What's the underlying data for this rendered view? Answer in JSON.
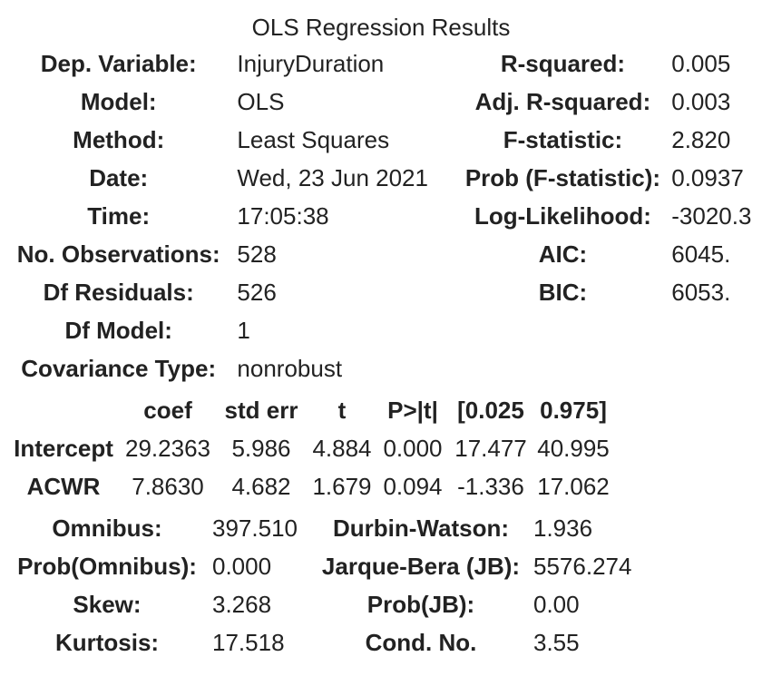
{
  "caption": "OLS Regression Results",
  "summary": {
    "rows": [
      {
        "label_left": "Dep. Variable:",
        "value_left": "InjuryDuration",
        "label_right": "R-squared:",
        "value_right": "0.005"
      },
      {
        "label_left": "Model:",
        "value_left": "OLS",
        "label_right": "Adj. R-squared:",
        "value_right": "0.003"
      },
      {
        "label_left": "Method:",
        "value_left": "Least Squares",
        "label_right": "F-statistic:",
        "value_right": "2.820"
      },
      {
        "label_left": "Date:",
        "value_left": "Wed, 23 Jun 2021",
        "label_right": "Prob (F-statistic):",
        "value_right": "0.0937"
      },
      {
        "label_left": "Time:",
        "value_left": "17:05:38",
        "label_right": "Log-Likelihood:",
        "value_right": "-3020.3"
      },
      {
        "label_left": "No. Observations:",
        "value_left": "528",
        "label_right": "AIC:",
        "value_right": "6045."
      },
      {
        "label_left": "Df Residuals:",
        "value_left": "526",
        "label_right": "BIC:",
        "value_right": "6053."
      },
      {
        "label_left": "Df Model:",
        "value_left": "1",
        "label_right": "",
        "value_right": ""
      },
      {
        "label_left": "Covariance Type:",
        "value_left": "nonrobust",
        "label_right": "",
        "value_right": ""
      }
    ]
  },
  "coefficients": {
    "headers": [
      "",
      "coef",
      "std err",
      "t",
      "P>|t|",
      "[0.025",
      "0.975]"
    ],
    "rows": [
      {
        "name": "Intercept",
        "coef": "29.2363",
        "std_err": "5.986",
        "t": "4.884",
        "p": "0.000",
        "ci_low": "17.477",
        "ci_high": "40.995"
      },
      {
        "name": "ACWR",
        "coef": "7.8630",
        "std_err": "4.682",
        "t": "1.679",
        "p": "0.094",
        "ci_low": "-1.336",
        "ci_high": "17.062"
      }
    ]
  },
  "diagnostics": {
    "rows": [
      {
        "label_left": "Omnibus:",
        "value_left": "397.510",
        "label_right": "Durbin-Watson:",
        "value_right": "1.936"
      },
      {
        "label_left": "Prob(Omnibus):",
        "value_left": "0.000",
        "label_right": "Jarque-Bera (JB):",
        "value_right": "5576.274"
      },
      {
        "label_left": "Skew:",
        "value_left": "3.268",
        "label_right": "Prob(JB):",
        "value_right": "0.00"
      },
      {
        "label_left": "Kurtosis:",
        "value_left": "17.518",
        "label_right": "Cond. No.",
        "value_right": "3.55"
      }
    ]
  }
}
